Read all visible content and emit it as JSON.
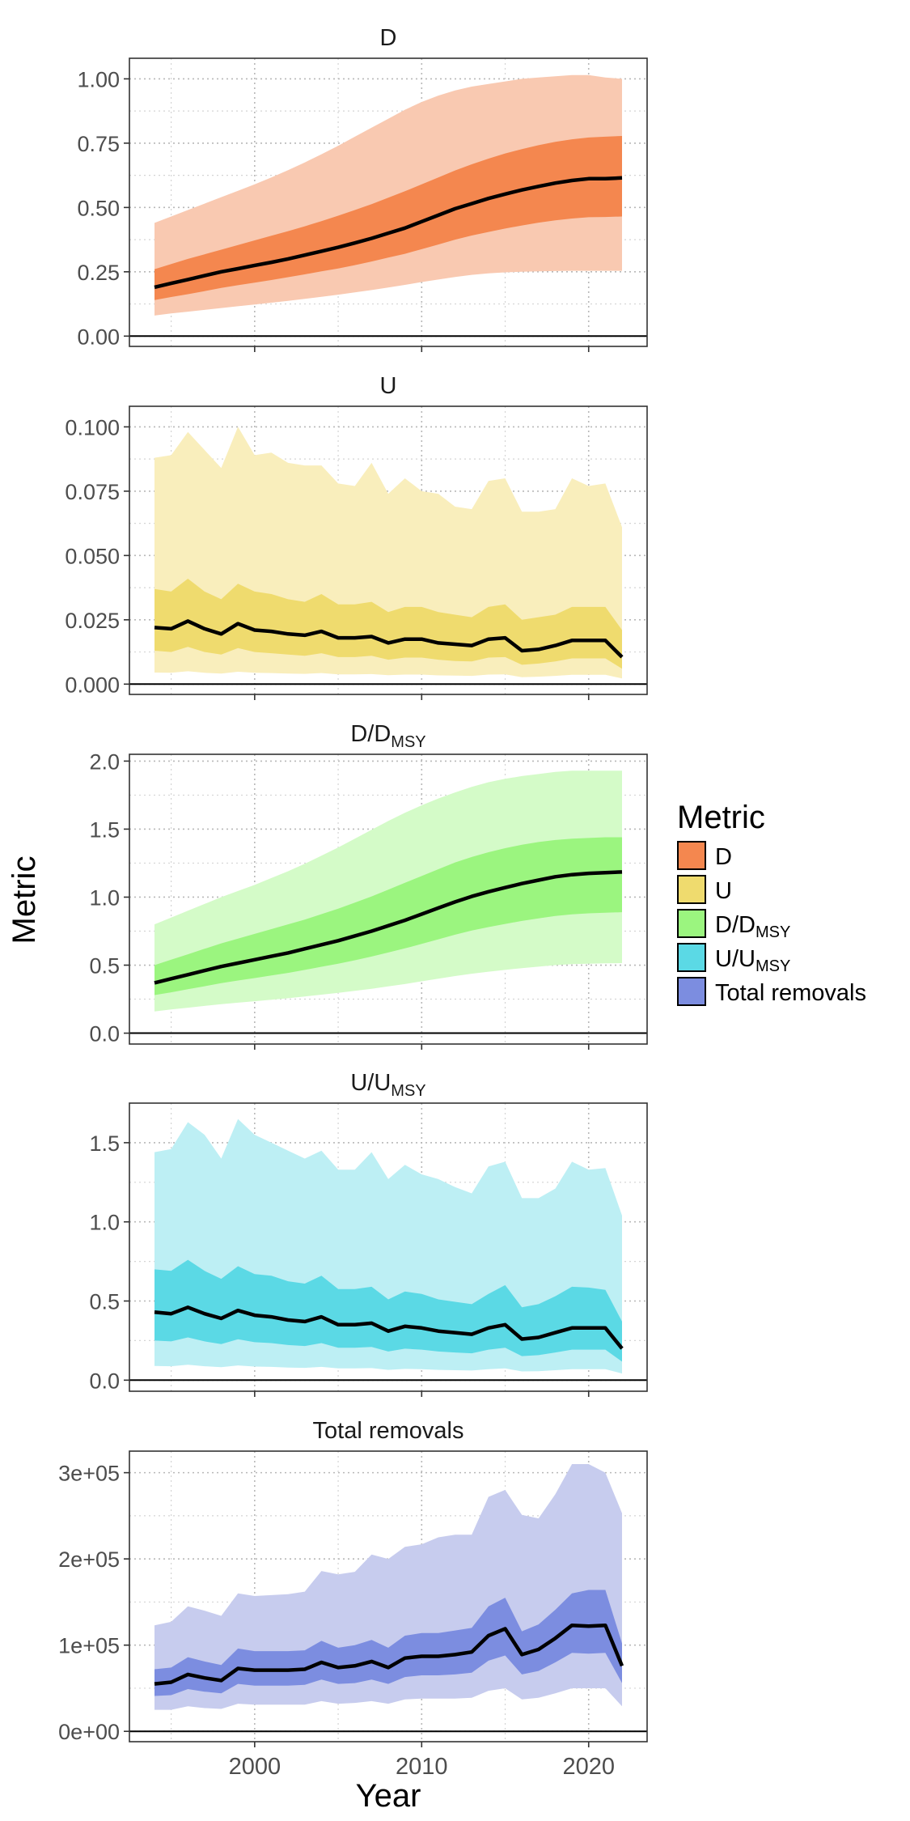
{
  "figure": {
    "ylabel": "Metric",
    "xlabel": "Year",
    "legend": {
      "title": "Metric",
      "placement": "right",
      "entries": [
        {
          "text": "D",
          "sub": "",
          "color": "#F4874F"
        },
        {
          "text": "U",
          "sub": "",
          "color": "#EFDB6E"
        },
        {
          "text": "D/D",
          "sub": "MSY",
          "color": "#9BF57F"
        },
        {
          "text": "U/U",
          "sub": "MSY",
          "color": "#5BD9E5"
        },
        {
          "text": "Total removals",
          "sub": "",
          "color": "#7C8DE0"
        }
      ]
    }
  },
  "chart_data": [
    {
      "type": "area",
      "title": "D",
      "title_sub": "",
      "xlim": [
        1992.5,
        2023.5
      ],
      "ylim": [
        -0.04,
        1.08
      ],
      "y_ticks": [
        0,
        0.25,
        0.5,
        0.75,
        1.0
      ],
      "y_tick_labels": [
        "0.00",
        "0.25",
        "0.50",
        "0.75",
        "1.00"
      ],
      "outer_color": "#F9C9B1",
      "inner_color": "#F4874F",
      "x": [
        1994,
        1995,
        1996,
        1997,
        1998,
        1999,
        2000,
        2001,
        2002,
        2003,
        2004,
        2005,
        2006,
        2007,
        2008,
        2009,
        2010,
        2011,
        2012,
        2013,
        2014,
        2015,
        2016,
        2017,
        2018,
        2019,
        2020,
        2021,
        2022
      ],
      "median": [
        0.19,
        0.205,
        0.22,
        0.235,
        0.25,
        0.262,
        0.275,
        0.287,
        0.3,
        0.315,
        0.33,
        0.345,
        0.362,
        0.38,
        0.4,
        0.42,
        0.445,
        0.47,
        0.495,
        0.515,
        0.535,
        0.552,
        0.568,
        0.582,
        0.595,
        0.605,
        0.612,
        0.612,
        0.615
      ],
      "inner_lower": [
        0.14,
        0.152,
        0.163,
        0.175,
        0.187,
        0.198,
        0.208,
        0.218,
        0.229,
        0.24,
        0.252,
        0.263,
        0.276,
        0.29,
        0.305,
        0.32,
        0.338,
        0.356,
        0.375,
        0.391,
        0.405,
        0.418,
        0.43,
        0.441,
        0.45,
        0.457,
        0.462,
        0.463,
        0.465
      ],
      "inner_upper": [
        0.26,
        0.28,
        0.3,
        0.318,
        0.336,
        0.354,
        0.372,
        0.39,
        0.408,
        0.427,
        0.447,
        0.468,
        0.49,
        0.513,
        0.538,
        0.563,
        0.59,
        0.617,
        0.644,
        0.668,
        0.69,
        0.71,
        0.727,
        0.742,
        0.755,
        0.765,
        0.772,
        0.775,
        0.778
      ],
      "outer_lower": [
        0.08,
        0.088,
        0.095,
        0.102,
        0.109,
        0.116,
        0.123,
        0.13,
        0.137,
        0.145,
        0.153,
        0.161,
        0.17,
        0.179,
        0.189,
        0.199,
        0.21,
        0.22,
        0.23,
        0.238,
        0.244,
        0.248,
        0.25,
        0.252,
        0.253,
        0.254,
        0.254,
        0.254,
        0.254
      ],
      "outer_upper": [
        0.44,
        0.465,
        0.49,
        0.515,
        0.54,
        0.565,
        0.59,
        0.617,
        0.645,
        0.675,
        0.707,
        0.74,
        0.775,
        0.81,
        0.845,
        0.88,
        0.91,
        0.935,
        0.955,
        0.97,
        0.98,
        0.99,
        1.0,
        1.005,
        1.01,
        1.015,
        1.015,
        1.005,
        1.0
      ]
    },
    {
      "type": "area",
      "title": "U",
      "title_sub": "",
      "xlim": [
        1992.5,
        2023.5
      ],
      "ylim": [
        -0.004,
        0.108
      ],
      "y_ticks": [
        0,
        0.025,
        0.05,
        0.075,
        0.1
      ],
      "y_tick_labels": [
        "0.000",
        "0.025",
        "0.050",
        "0.075",
        "0.100"
      ],
      "outer_color": "#F9EEBC",
      "inner_color": "#EFDB6E",
      "x": [
        1994,
        1995,
        1996,
        1997,
        1998,
        1999,
        2000,
        2001,
        2002,
        2003,
        2004,
        2005,
        2006,
        2007,
        2008,
        2009,
        2010,
        2011,
        2012,
        2013,
        2014,
        2015,
        2016,
        2017,
        2018,
        2019,
        2020,
        2021,
        2022
      ],
      "median": [
        0.022,
        0.0215,
        0.0245,
        0.0215,
        0.0195,
        0.0235,
        0.021,
        0.0205,
        0.0195,
        0.019,
        0.0205,
        0.018,
        0.018,
        0.0185,
        0.016,
        0.0175,
        0.0175,
        0.016,
        0.0155,
        0.015,
        0.0175,
        0.018,
        0.013,
        0.0135,
        0.015,
        0.017,
        0.017,
        0.017,
        0.0105
      ],
      "inner_lower": [
        0.013,
        0.0125,
        0.0145,
        0.0125,
        0.0115,
        0.014,
        0.0125,
        0.012,
        0.0115,
        0.011,
        0.012,
        0.0105,
        0.0105,
        0.011,
        0.0095,
        0.0103,
        0.0103,
        0.0095,
        0.009,
        0.0088,
        0.0103,
        0.0105,
        0.0075,
        0.008,
        0.0088,
        0.01,
        0.01,
        0.01,
        0.006
      ],
      "inner_upper": [
        0.037,
        0.036,
        0.041,
        0.036,
        0.033,
        0.039,
        0.036,
        0.035,
        0.033,
        0.032,
        0.035,
        0.031,
        0.031,
        0.032,
        0.028,
        0.03,
        0.03,
        0.028,
        0.027,
        0.026,
        0.03,
        0.031,
        0.025,
        0.026,
        0.027,
        0.03,
        0.03,
        0.03,
        0.021
      ],
      "outer_lower": [
        0.0045,
        0.0044,
        0.005,
        0.0044,
        0.0041,
        0.0048,
        0.0044,
        0.0043,
        0.0041,
        0.004,
        0.0043,
        0.0038,
        0.0038,
        0.0039,
        0.0035,
        0.0037,
        0.0037,
        0.0034,
        0.0033,
        0.0032,
        0.0037,
        0.0038,
        0.0027,
        0.0029,
        0.0032,
        0.0036,
        0.0036,
        0.0036,
        0.0022
      ],
      "outer_upper": [
        0.088,
        0.089,
        0.098,
        0.091,
        0.084,
        0.1,
        0.089,
        0.09,
        0.086,
        0.085,
        0.085,
        0.078,
        0.077,
        0.086,
        0.074,
        0.08,
        0.075,
        0.074,
        0.069,
        0.068,
        0.079,
        0.08,
        0.067,
        0.067,
        0.068,
        0.08,
        0.077,
        0.078,
        0.061
      ]
    },
    {
      "type": "area",
      "title": "D/D",
      "title_sub": "MSY",
      "xlim": [
        1992.5,
        2023.5
      ],
      "ylim": [
        -0.08,
        2.05
      ],
      "y_ticks": [
        0,
        0.5,
        1.0,
        1.5,
        2.0
      ],
      "y_tick_labels": [
        "0.0",
        "0.5",
        "1.0",
        "1.5",
        "2.0"
      ],
      "outer_color": "#D4FBC8",
      "inner_color": "#9BF57F",
      "x": [
        1994,
        1995,
        1996,
        1997,
        1998,
        1999,
        2000,
        2001,
        2002,
        2003,
        2004,
        2005,
        2006,
        2007,
        2008,
        2009,
        2010,
        2011,
        2012,
        2013,
        2014,
        2015,
        2016,
        2017,
        2018,
        2019,
        2020,
        2021,
        2022
      ],
      "median": [
        0.37,
        0.4,
        0.43,
        0.46,
        0.49,
        0.515,
        0.54,
        0.565,
        0.59,
        0.62,
        0.65,
        0.68,
        0.715,
        0.75,
        0.79,
        0.83,
        0.875,
        0.92,
        0.965,
        1.005,
        1.04,
        1.07,
        1.1,
        1.125,
        1.15,
        1.165,
        1.175,
        1.18,
        1.185
      ],
      "inner_lower": [
        0.28,
        0.3,
        0.323,
        0.345,
        0.368,
        0.387,
        0.405,
        0.424,
        0.443,
        0.465,
        0.488,
        0.51,
        0.536,
        0.563,
        0.593,
        0.623,
        0.656,
        0.69,
        0.724,
        0.754,
        0.78,
        0.803,
        0.825,
        0.844,
        0.862,
        0.874,
        0.881,
        0.885,
        0.889
      ],
      "inner_upper": [
        0.5,
        0.54,
        0.58,
        0.62,
        0.66,
        0.695,
        0.73,
        0.765,
        0.8,
        0.835,
        0.875,
        0.915,
        0.96,
        1.005,
        1.055,
        1.105,
        1.155,
        1.205,
        1.255,
        1.295,
        1.33,
        1.36,
        1.385,
        1.405,
        1.42,
        1.43,
        1.435,
        1.44,
        1.44
      ],
      "outer_lower": [
        0.16,
        0.174,
        0.187,
        0.2,
        0.213,
        0.224,
        0.235,
        0.246,
        0.257,
        0.27,
        0.283,
        0.296,
        0.311,
        0.326,
        0.344,
        0.361,
        0.381,
        0.4,
        0.42,
        0.437,
        0.452,
        0.465,
        0.478,
        0.489,
        0.5,
        0.507,
        0.511,
        0.513,
        0.515
      ],
      "outer_upper": [
        0.8,
        0.85,
        0.9,
        0.95,
        1.0,
        1.045,
        1.09,
        1.14,
        1.19,
        1.245,
        1.305,
        1.365,
        1.43,
        1.495,
        1.56,
        1.62,
        1.675,
        1.725,
        1.77,
        1.81,
        1.845,
        1.87,
        1.89,
        1.905,
        1.92,
        1.93,
        1.93,
        1.93,
        1.93
      ]
    },
    {
      "type": "area",
      "title": "U/U",
      "title_sub": "MSY",
      "xlim": [
        1992.5,
        2023.5
      ],
      "ylim": [
        -0.07,
        1.75
      ],
      "y_ticks": [
        0,
        0.5,
        1.0,
        1.5
      ],
      "y_tick_labels": [
        "0.0",
        "0.5",
        "1.0",
        "1.5"
      ],
      "outer_color": "#BDEFF4",
      "inner_color": "#5BD9E5",
      "x": [
        1994,
        1995,
        1996,
        1997,
        1998,
        1999,
        2000,
        2001,
        2002,
        2003,
        2004,
        2005,
        2006,
        2007,
        2008,
        2009,
        2010,
        2011,
        2012,
        2013,
        2014,
        2015,
        2016,
        2017,
        2018,
        2019,
        2020,
        2021,
        2022
      ],
      "median": [
        0.43,
        0.42,
        0.46,
        0.42,
        0.39,
        0.44,
        0.41,
        0.4,
        0.38,
        0.37,
        0.4,
        0.35,
        0.35,
        0.36,
        0.31,
        0.34,
        0.33,
        0.31,
        0.3,
        0.29,
        0.33,
        0.35,
        0.26,
        0.27,
        0.3,
        0.33,
        0.33,
        0.33,
        0.2
      ],
      "inner_lower": [
        0.25,
        0.245,
        0.27,
        0.245,
        0.228,
        0.258,
        0.24,
        0.234,
        0.222,
        0.216,
        0.234,
        0.205,
        0.205,
        0.21,
        0.181,
        0.199,
        0.193,
        0.181,
        0.175,
        0.17,
        0.193,
        0.205,
        0.152,
        0.158,
        0.175,
        0.193,
        0.193,
        0.193,
        0.117
      ],
      "inner_upper": [
        0.7,
        0.69,
        0.76,
        0.69,
        0.64,
        0.72,
        0.67,
        0.66,
        0.625,
        0.61,
        0.66,
        0.575,
        0.575,
        0.59,
        0.51,
        0.56,
        0.545,
        0.51,
        0.495,
        0.48,
        0.545,
        0.6,
        0.46,
        0.48,
        0.53,
        0.59,
        0.585,
        0.57,
        0.37
      ],
      "outer_lower": [
        0.09,
        0.088,
        0.097,
        0.088,
        0.082,
        0.093,
        0.086,
        0.084,
        0.08,
        0.078,
        0.084,
        0.074,
        0.074,
        0.076,
        0.065,
        0.071,
        0.069,
        0.065,
        0.063,
        0.061,
        0.069,
        0.074,
        0.055,
        0.057,
        0.063,
        0.069,
        0.069,
        0.069,
        0.042
      ],
      "outer_upper": [
        1.44,
        1.46,
        1.63,
        1.55,
        1.4,
        1.65,
        1.55,
        1.5,
        1.45,
        1.4,
        1.45,
        1.33,
        1.33,
        1.44,
        1.27,
        1.36,
        1.3,
        1.27,
        1.22,
        1.18,
        1.35,
        1.38,
        1.15,
        1.15,
        1.21,
        1.38,
        1.33,
        1.34,
        1.04
      ]
    },
    {
      "type": "area",
      "title": "Total removals",
      "title_sub": "",
      "xlim": [
        1992.5,
        2023.5
      ],
      "ylim": [
        -12000,
        325000
      ],
      "y_ticks": [
        0,
        100000,
        200000,
        300000
      ],
      "y_tick_labels": [
        "0e+00",
        "1e+05",
        "2e+05",
        "3e+05"
      ],
      "outer_color": "#C7CCEE",
      "inner_color": "#7C8DE0",
      "x": [
        1994,
        1995,
        1996,
        1997,
        1998,
        1999,
        2000,
        2001,
        2002,
        2003,
        2004,
        2005,
        2006,
        2007,
        2008,
        2009,
        2010,
        2011,
        2012,
        2013,
        2014,
        2015,
        2016,
        2017,
        2018,
        2019,
        2020,
        2021,
        2022
      ],
      "median": [
        55000,
        57000,
        66000,
        62000,
        59000,
        73000,
        71000,
        71000,
        71000,
        72000,
        80000,
        74000,
        76000,
        81000,
        74000,
        85000,
        87000,
        87000,
        89000,
        92000,
        111000,
        119000,
        89000,
        95000,
        108000,
        123000,
        122000,
        123000,
        76000
      ],
      "inner_lower": [
        41000,
        42000,
        49000,
        46000,
        44000,
        55000,
        53000,
        53000,
        53000,
        54000,
        60000,
        55000,
        56000,
        60000,
        55000,
        63000,
        65000,
        65000,
        66000,
        68000,
        82000,
        88000,
        66000,
        70000,
        80000,
        91000,
        90000,
        91000,
        56000
      ],
      "inner_upper": [
        72000,
        74000,
        86000,
        81000,
        77000,
        96000,
        93000,
        93000,
        93000,
        94000,
        105000,
        97000,
        100000,
        106000,
        97000,
        111000,
        114000,
        114000,
        117000,
        120000,
        145000,
        155000,
        116000,
        124000,
        141000,
        160000,
        164000,
        164000,
        102000
      ],
      "outer_lower": [
        25000,
        25000,
        29000,
        27000,
        26000,
        32000,
        31000,
        31000,
        31000,
        31000,
        35000,
        32000,
        33000,
        35000,
        32000,
        37000,
        38000,
        38000,
        38000,
        39000,
        47000,
        50000,
        37000,
        39000,
        44000,
        50000,
        50000,
        50000,
        29000
      ],
      "outer_upper": [
        123000,
        127000,
        145000,
        140000,
        134000,
        160000,
        157000,
        158000,
        159000,
        162000,
        186000,
        182000,
        185000,
        205000,
        200000,
        214000,
        217000,
        225000,
        228000,
        228000,
        272000,
        280000,
        251000,
        247000,
        275000,
        310000,
        310000,
        300000,
        253000
      ]
    }
  ],
  "x_axis": {
    "ticks": [
      2000,
      2010,
      2020
    ],
    "tick_labels": [
      "2000",
      "2010",
      "2020"
    ]
  }
}
